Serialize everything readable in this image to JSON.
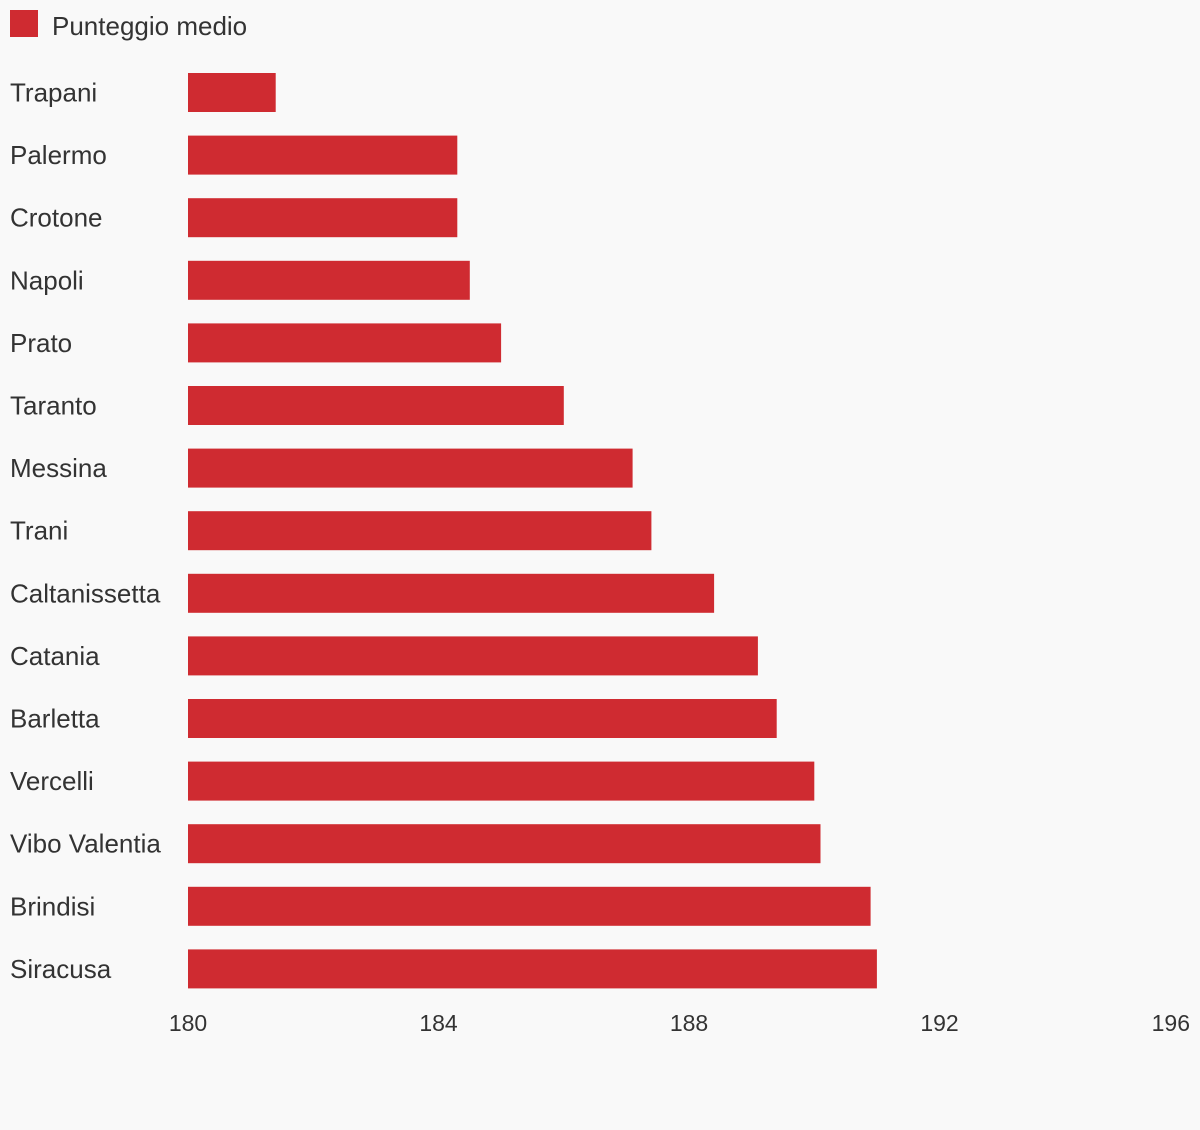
{
  "chart_data": {
    "type": "bar",
    "orientation": "horizontal",
    "categories": [
      "Trapani",
      "Palermo",
      "Crotone",
      "Napoli",
      "Prato",
      "Taranto",
      "Messina",
      "Trani",
      "Caltanissetta",
      "Catania",
      "Barletta",
      "Vercelli",
      "Vibo Valentia",
      "Brindisi",
      "Siracusa"
    ],
    "series": [
      {
        "name": "Punteggio medio",
        "color": "#cf2b31",
        "values": [
          181.4,
          184.3,
          184.3,
          184.5,
          185.0,
          186.0,
          187.1,
          187.4,
          188.4,
          189.1,
          189.4,
          190.0,
          190.1,
          190.9,
          191.0
        ]
      }
    ],
    "xlim": [
      180,
      196
    ],
    "ticks": [
      "180",
      "184",
      "188",
      "192",
      "196"
    ],
    "legend": "top-left",
    "grid": false
  }
}
